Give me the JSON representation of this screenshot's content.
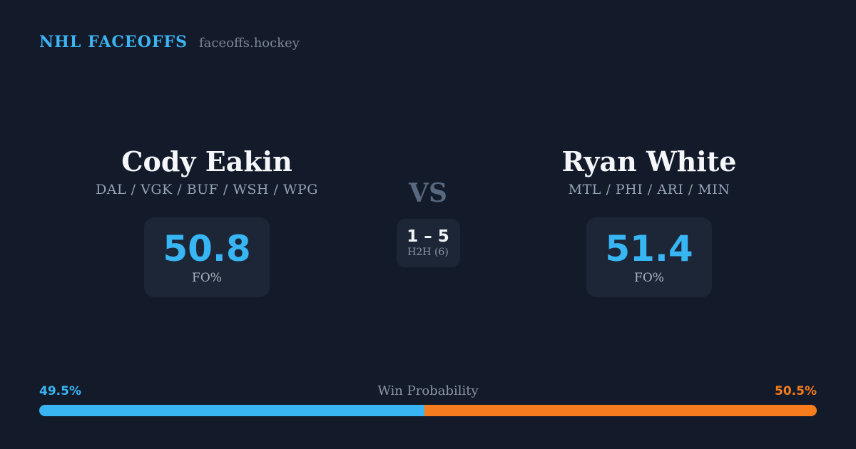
{
  "header": {
    "brand": "NHL FACEOFFS",
    "site": "faceoffs.hockey"
  },
  "players": [
    {
      "name": "Cody Eakin",
      "teams": "DAL / VGK / BUF / WSH / WPG",
      "fo_value": "50.8",
      "fo_label": "FO%"
    },
    {
      "name": "Ryan White",
      "teams": "MTL / PHI / ARI / MIN",
      "fo_value": "51.4",
      "fo_label": "FO%"
    }
  ],
  "center": {
    "vs": "VS",
    "h2h_score": "1 – 5",
    "h2h_label": "H2H (6)"
  },
  "win_probability": {
    "title": "Win Probability",
    "left_label": "49.5%",
    "right_label": "50.5%",
    "left_value": 49.5,
    "right_value": 50.5
  },
  "colors": {
    "background": "#131a2a",
    "card": "#1c2637",
    "accent_blue": "#38b5f3",
    "accent_orange": "#f57d1d",
    "name_white": "#f4f6f9",
    "muted_gray": "#8a95a7",
    "vs_gray": "#57687f"
  }
}
